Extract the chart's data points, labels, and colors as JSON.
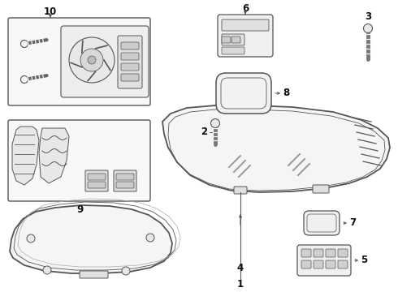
{
  "bg_color": "#ffffff",
  "line_color": "#555555",
  "label_color": "#111111",
  "figsize": [
    4.9,
    3.6
  ],
  "dpi": 100
}
